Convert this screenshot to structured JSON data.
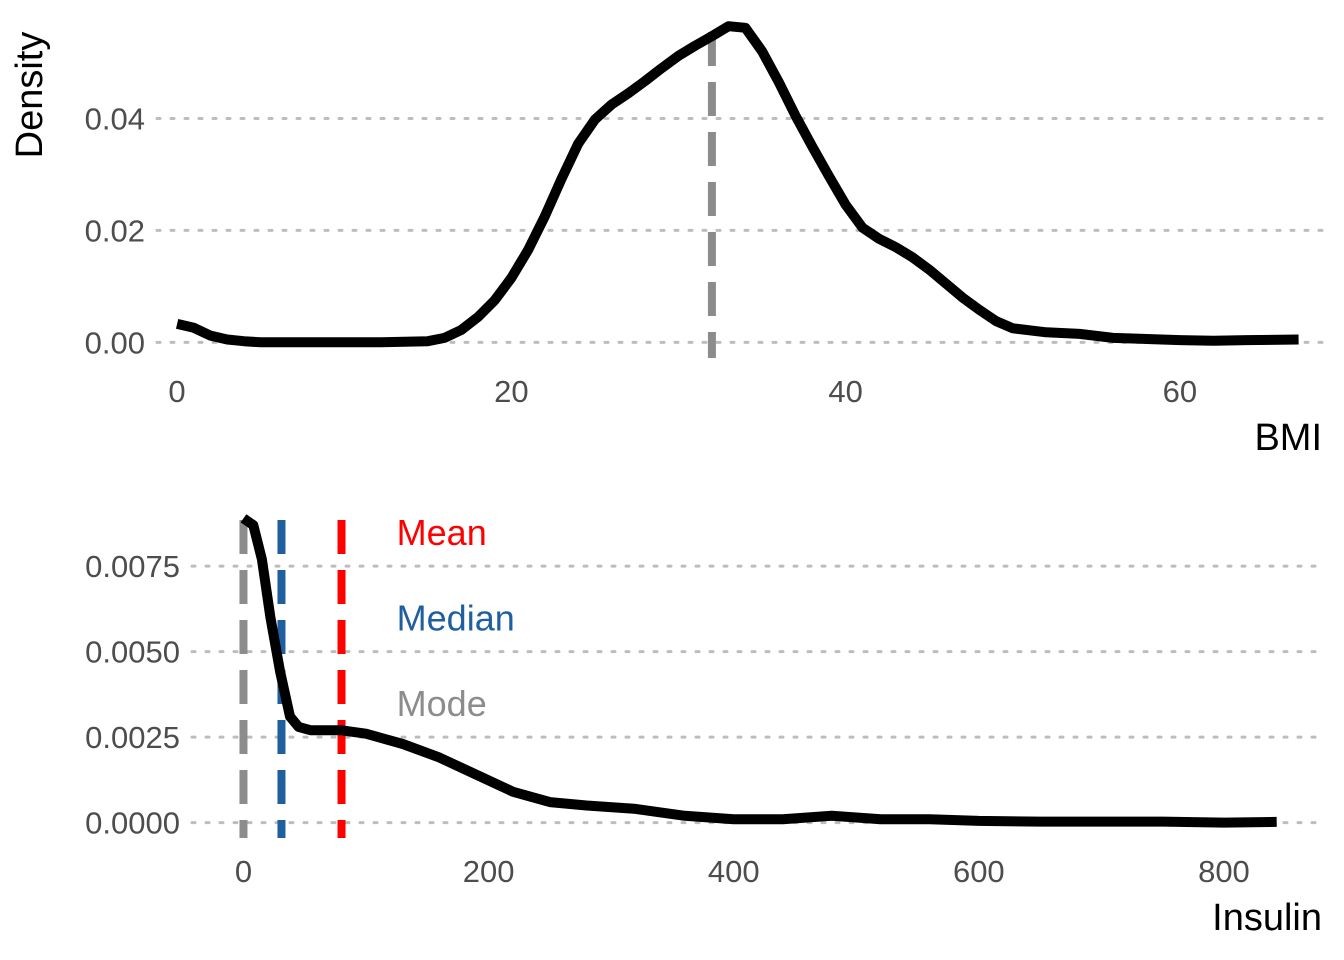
{
  "colors": {
    "mean": "#ff0000",
    "median": "#1f5f9f",
    "mode": "#8c8c8c",
    "curve": "#000000",
    "grid": "#bdbdbd"
  },
  "chart_data": [
    {
      "type": "line",
      "name": "bmi-density",
      "xlabel": "BMI",
      "ylabel": "Density",
      "xlim": [
        -1.2,
        68.5
      ],
      "ylim": [
        -0.0028,
        0.0576
      ],
      "xticks": [
        0,
        20,
        40,
        60
      ],
      "xtick_labels": [
        "0",
        "20",
        "40",
        "60"
      ],
      "yticks": [
        0,
        0.02,
        0.04
      ],
      "ytick_labels": [
        "0.00",
        "0.02",
        "0.04"
      ],
      "grid": "horizontal dotted",
      "x": [
        0,
        1,
        2,
        3,
        4,
        5,
        8,
        12,
        15,
        16,
        17,
        18,
        19,
        20,
        21,
        22,
        23,
        24,
        25,
        26,
        27,
        28,
        29,
        30,
        31,
        32,
        33,
        34,
        35,
        36,
        37,
        38,
        39,
        40,
        41,
        42,
        43,
        44,
        45,
        46,
        47,
        48,
        49,
        50,
        52,
        54,
        56,
        58,
        60,
        62,
        64,
        67.1
      ],
      "values": [
        0.0033,
        0.0026,
        0.0012,
        0.0005,
        0.0002,
        0.0,
        0.0,
        0.0,
        0.0002,
        0.0008,
        0.0022,
        0.0045,
        0.0075,
        0.0115,
        0.0165,
        0.0225,
        0.0292,
        0.0355,
        0.0398,
        0.0425,
        0.0445,
        0.0467,
        0.049,
        0.0512,
        0.053,
        0.0547,
        0.0565,
        0.0562,
        0.052,
        0.0465,
        0.0405,
        0.035,
        0.0297,
        0.0246,
        0.0205,
        0.0185,
        0.017,
        0.0152,
        0.013,
        0.0105,
        0.008,
        0.0058,
        0.0038,
        0.0025,
        0.0018,
        0.0015,
        0.0008,
        0.0006,
        0.0004,
        0.0003,
        0.0004,
        0.0005
      ],
      "vlines": [
        {
          "stat": "mode",
          "x": 32
        }
      ]
    },
    {
      "type": "line",
      "name": "insulin-density",
      "xlabel": "Insulin",
      "ylabel": "",
      "xlim": [
        -42,
        880
      ],
      "ylim": [
        -0.00045,
        0.0092
      ],
      "xticks": [
        0,
        200,
        400,
        600,
        800
      ],
      "xtick_labels": [
        "0",
        "200",
        "400",
        "600",
        "800"
      ],
      "yticks": [
        0,
        0.0025,
        0.005,
        0.0075
      ],
      "ytick_labels": [
        "0.0000",
        "0.0025",
        "0.0050",
        "0.0075"
      ],
      "grid": "horizontal dotted",
      "x": [
        0,
        8,
        15,
        22,
        30,
        38,
        45,
        55,
        65,
        80,
        100,
        130,
        160,
        190,
        220,
        250,
        280,
        320,
        360,
        400,
        440,
        480,
        520,
        560,
        600,
        650,
        700,
        750,
        800,
        843
      ],
      "values": [
        0.0089,
        0.0087,
        0.0077,
        0.006,
        0.0044,
        0.0031,
        0.0028,
        0.0027,
        0.0027,
        0.0027,
        0.0026,
        0.0023,
        0.0019,
        0.0014,
        0.0009,
        0.0006,
        0.0005,
        0.0004,
        0.0002,
        0.0001,
        0.0001,
        0.0002,
        0.0001,
        0.0001,
        5e-05,
        3e-05,
        3e-05,
        3e-05,
        0.0,
        2e-05
      ],
      "vlines": [
        {
          "stat": "mode",
          "x": 0
        },
        {
          "stat": "median",
          "x": 31
        },
        {
          "stat": "mean",
          "x": 80
        }
      ],
      "annotations": [
        {
          "label": "Mean",
          "stat": "mean",
          "x": 125,
          "y": 0.0085
        },
        {
          "label": "Median",
          "stat": "median",
          "x": 125,
          "y": 0.006
        },
        {
          "label": "Mode",
          "stat": "mode",
          "x": 125,
          "y": 0.0035
        }
      ]
    }
  ]
}
